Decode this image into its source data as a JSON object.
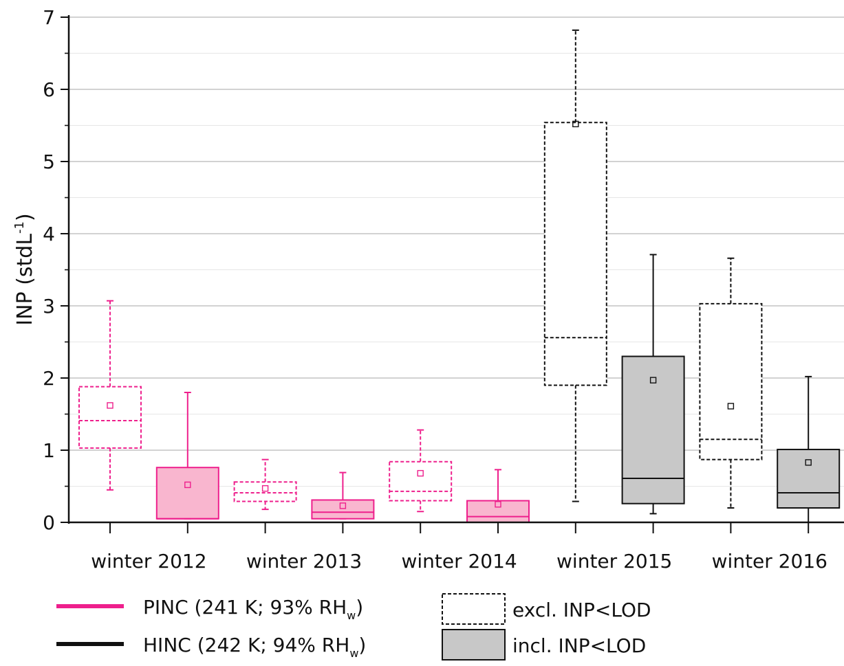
{
  "chart_data": {
    "type": "box",
    "xlabel": "",
    "ylabel_main": "INP (stdL",
    "ylabel_sup": "-1",
    "ylabel_close": ")",
    "ylim": [
      0,
      7
    ],
    "yticks": [
      "0",
      "1",
      "2",
      "3",
      "4",
      "5",
      "6",
      "7"
    ],
    "grid": true,
    "categories": [
      "winter 2012",
      "winter 2013",
      "winter 2014",
      "winter 2015",
      "winter 2016"
    ],
    "series": [
      {
        "instrument": "PINC",
        "set": "excl",
        "color": "#ee1f8c",
        "boxes": [
          {
            "category": "winter 2012",
            "whisker_low": 0.45,
            "q1": 1.03,
            "median": 1.41,
            "q3": 1.88,
            "whisker_high": 3.07,
            "mean": 1.62
          },
          {
            "category": "winter 2013",
            "whisker_low": 0.18,
            "q1": 0.29,
            "median": 0.41,
            "q3": 0.56,
            "whisker_high": 0.87,
            "mean": 0.47
          },
          {
            "category": "winter 2014",
            "whisker_low": 0.15,
            "q1": 0.3,
            "median": 0.43,
            "q3": 0.84,
            "whisker_high": 1.28,
            "mean": 0.68
          }
        ]
      },
      {
        "instrument": "PINC",
        "set": "incl",
        "color": "#ee1f8c",
        "fill": "#f9b6cf",
        "boxes": [
          {
            "category": "winter 2012",
            "whisker_low": 0.05,
            "q1": 0.05,
            "median": 0.05,
            "q3": 0.76,
            "whisker_high": 1.8,
            "mean": 0.52
          },
          {
            "category": "winter 2013",
            "whisker_low": 0.05,
            "q1": 0.05,
            "median": 0.14,
            "q3": 0.31,
            "whisker_high": 0.69,
            "mean": 0.23
          },
          {
            "category": "winter 2014",
            "whisker_low": 0.0,
            "q1": 0.0,
            "median": 0.08,
            "q3": 0.3,
            "whisker_high": 0.73,
            "mean": 0.25
          }
        ]
      },
      {
        "instrument": "HINC",
        "set": "excl",
        "color": "#111111",
        "boxes": [
          {
            "category": "winter 2015",
            "whisker_low": 0.29,
            "q1": 1.9,
            "median": 2.56,
            "q3": 5.54,
            "whisker_high": 6.82,
            "mean": 5.52
          },
          {
            "category": "winter 2016",
            "whisker_low": 0.2,
            "q1": 0.87,
            "median": 1.15,
            "q3": 3.03,
            "whisker_high": 3.66,
            "mean": 1.61
          }
        ]
      },
      {
        "instrument": "HINC",
        "set": "incl",
        "color": "#111111",
        "fill": "#c8c8c8",
        "boxes": [
          {
            "category": "winter 2015",
            "whisker_low": 0.12,
            "q1": 0.26,
            "median": 0.61,
            "q3": 2.3,
            "whisker_high": 3.71,
            "mean": 1.97
          },
          {
            "category": "winter 2016",
            "whisker_low": 0.0,
            "q1": 0.2,
            "median": 0.41,
            "q3": 1.01,
            "whisker_high": 2.02,
            "mean": 0.83
          }
        ]
      }
    ],
    "legend": {
      "pinc": {
        "main": "PINC (241 K; 93% RH",
        "sub": "w",
        "close": ")",
        "color": "#ee1f8c"
      },
      "hinc": {
        "main": "HINC (242 K; 94% RH",
        "sub": "w",
        "close": ")",
        "color": "#111111"
      },
      "excl": "excl. INP<LOD",
      "incl": "incl. INP<LOD"
    }
  }
}
